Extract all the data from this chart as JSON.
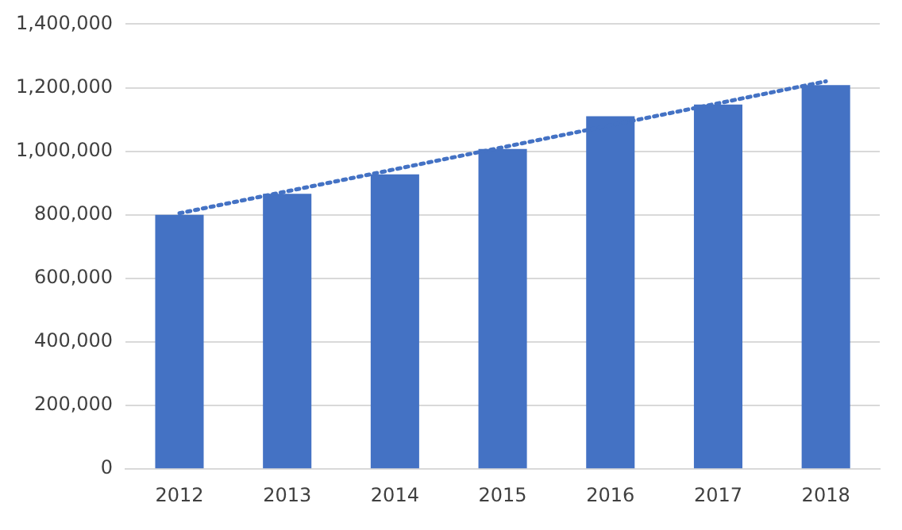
{
  "chart_data": {
    "type": "bar",
    "categories": [
      "2012",
      "2013",
      "2014",
      "2015",
      "2016",
      "2017",
      "2018"
    ],
    "series": [
      {
        "color": "#4472c4",
        "values": [
          800000,
          866000,
          927000,
          1007000,
          1110000,
          1147000,
          1208000
        ]
      },
      {
        "type": "line",
        "color": "#4472c4",
        "values": [
          805000,
          null,
          null,
          null,
          null,
          null,
          1220000
        ],
        "line_style": "dotted",
        "marker": "none"
      }
    ],
    "ylim": [
      0,
      1400000
    ],
    "yticks": [
      0,
      {
        "value": 200000,
        "label": "200,000"
      },
      {
        "value": 400000,
        "label": "400,000"
      },
      {
        "value": 600000,
        "label": "600,000"
      },
      {
        "value": 800000,
        "label": "800,000"
      },
      {
        "value": 1000000,
        "label": "1,000,000"
      },
      {
        "value": 1200000,
        "label": "1,200,000"
      },
      {
        "value": 1400000,
        "label": "1,400,000"
      }
    ],
    "grid": "y",
    "legend": false
  }
}
